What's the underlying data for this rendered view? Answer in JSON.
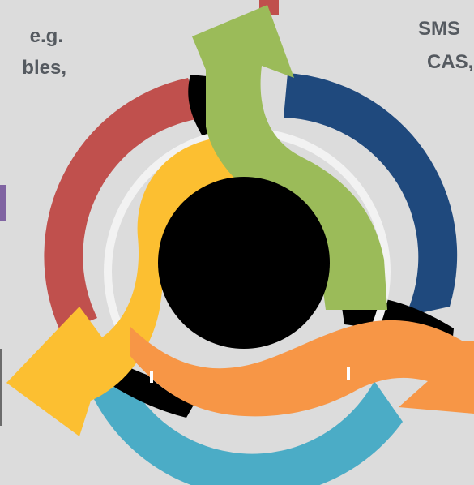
{
  "text_fragments": {
    "left_line_1": "e.g.",
    "left_line_2": "bles,",
    "right_line_1": "SMS",
    "right_line_2": "CAS,"
  },
  "colors": {
    "background": "#dcdcdc",
    "red": "#c0504d",
    "blue": "#1f497d",
    "green": "#9bbb59",
    "yellow": "#fcbf31",
    "orange": "#f79646",
    "cyan": "#4bacc6",
    "purple": "#8064a2",
    "text": "#555a60",
    "core": "#000000",
    "inner_ring": "#f2f2f2"
  }
}
